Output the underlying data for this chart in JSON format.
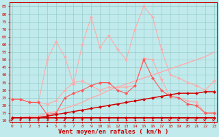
{
  "bg_color": "#c0eaec",
  "grid_color": "#99cccc",
  "line_dark": "#cc0000",
  "line_mid": "#ff5555",
  "line_light": "#ffaaaa",
  "xlabel": "Vent moyen/en rafales ( km/h )",
  "xlabel_color": "#cc0000",
  "ylabel_ticks": [
    10,
    15,
    20,
    25,
    30,
    35,
    40,
    45,
    50,
    55,
    60,
    65,
    70,
    75,
    80,
    85
  ],
  "x_values": [
    0,
    1,
    2,
    3,
    4,
    5,
    6,
    7,
    8,
    9,
    10,
    11,
    12,
    13,
    14,
    15,
    16,
    17,
    18,
    19,
    20,
    21,
    22,
    23
  ],
  "line_flat": [
    12,
    12,
    12,
    12,
    12,
    12,
    12,
    12,
    12,
    12,
    12,
    12,
    12,
    12,
    12,
    12,
    12,
    12,
    12,
    12,
    12,
    12,
    12,
    12
  ],
  "line_diag_low": [
    12,
    12,
    12,
    12,
    13,
    14,
    15,
    16,
    17,
    18,
    19,
    20,
    21,
    22,
    23,
    24,
    25,
    26,
    27,
    28,
    28,
    28,
    29,
    29
  ],
  "line_diag_high": [
    12,
    12,
    13,
    13,
    15,
    16,
    18,
    20,
    22,
    25,
    27,
    30,
    32,
    34,
    36,
    38,
    40,
    42,
    44,
    46,
    48,
    50,
    52,
    55
  ],
  "line_mid_red": [
    24,
    24,
    22,
    22,
    14,
    15,
    25,
    28,
    30,
    33,
    35,
    35,
    30,
    28,
    33,
    50,
    38,
    30,
    26,
    25,
    21,
    20,
    15,
    15
  ],
  "line_light_low": [
    24,
    24,
    22,
    22,
    21,
    23,
    30,
    35,
    36,
    33,
    30,
    32,
    32,
    32,
    33,
    51,
    50,
    37,
    26,
    25,
    23,
    22,
    15,
    15
  ],
  "line_light_high": [
    24,
    24,
    22,
    22,
    50,
    62,
    52,
    34,
    60,
    78,
    58,
    66,
    57,
    50,
    70,
    85,
    78,
    57,
    40,
    38,
    35,
    33,
    30,
    36
  ],
  "ylim": [
    9,
    88
  ],
  "xlim": [
    -0.3,
    23.3
  ]
}
